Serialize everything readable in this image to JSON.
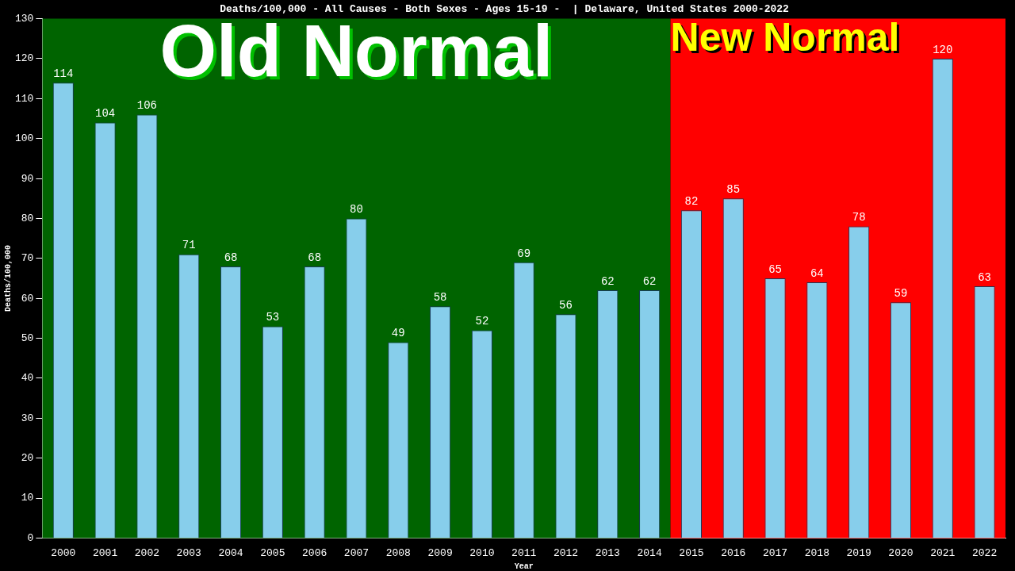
{
  "chart_data": {
    "type": "bar",
    "title": "Deaths/100,000 - All Causes - Both Sexes - Ages 15-19 -  | Delaware, United States 2000-2022",
    "xlabel": "Year",
    "ylabel": "Deaths/100,000",
    "categories": [
      "2000",
      "2001",
      "2002",
      "2003",
      "2004",
      "2005",
      "2006",
      "2007",
      "2008",
      "2009",
      "2010",
      "2011",
      "2012",
      "2013",
      "2014",
      "2015",
      "2016",
      "2017",
      "2018",
      "2019",
      "2020",
      "2021",
      "2022"
    ],
    "values": [
      114,
      104,
      106,
      71,
      68,
      53,
      68,
      80,
      49,
      58,
      52,
      69,
      56,
      62,
      62,
      82,
      85,
      65,
      64,
      78,
      59,
      120,
      63
    ],
    "color": "#87ceeb",
    "ylim": [
      0,
      130
    ],
    "yticks": [
      0,
      10,
      20,
      30,
      40,
      50,
      60,
      70,
      80,
      90,
      100,
      110,
      120,
      130
    ],
    "grid": false,
    "legend": false,
    "data_labels": true,
    "bands": [
      {
        "axis": "x",
        "from": "2000",
        "to": "2014",
        "label": "Old Normal",
        "color": "#006400"
      },
      {
        "axis": "x",
        "from": "2015",
        "to": "2022",
        "label": "New Normal",
        "color": "#ff0000"
      }
    ]
  }
}
